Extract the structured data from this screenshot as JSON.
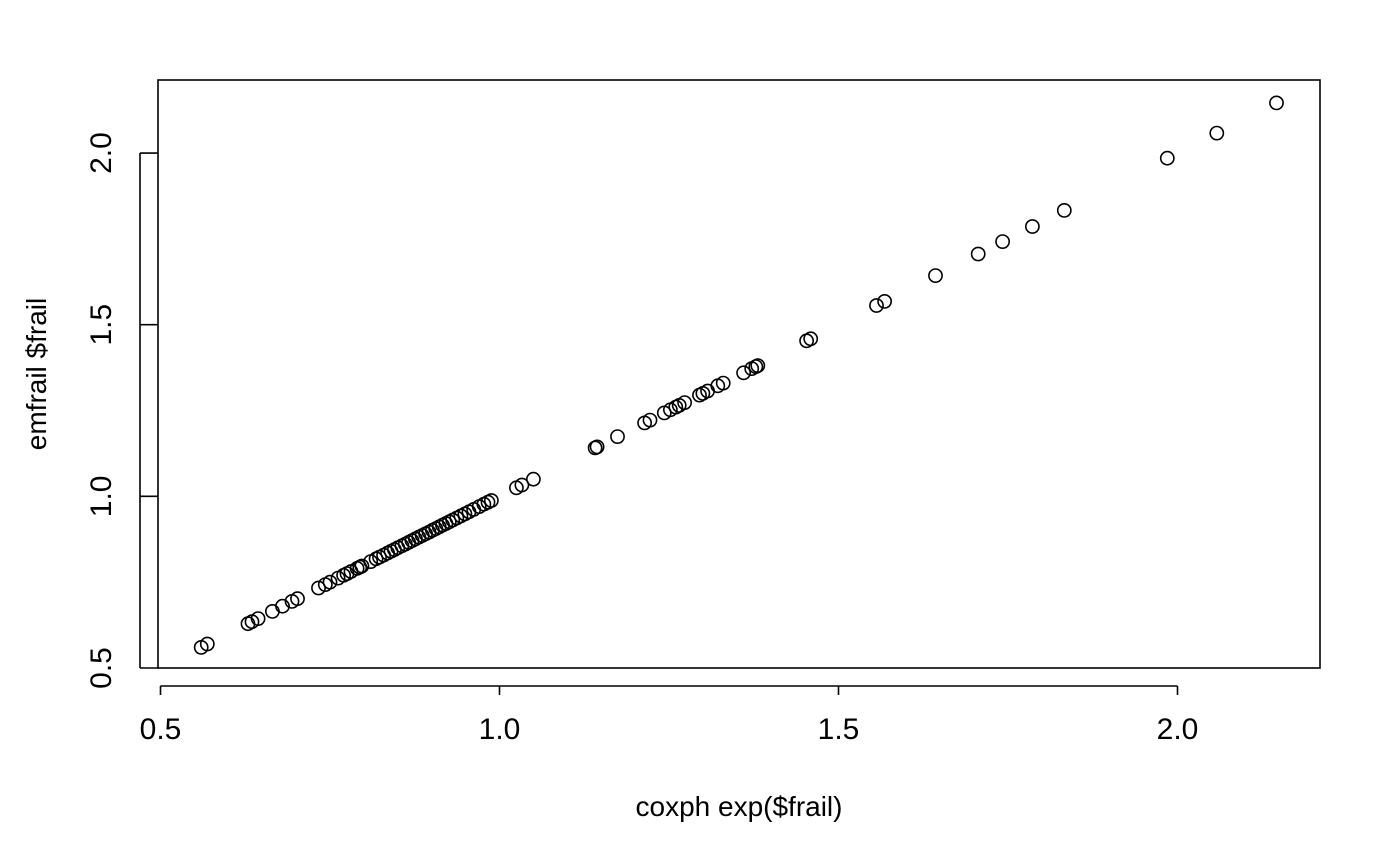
{
  "chart_data": {
    "type": "scatter",
    "title": "",
    "xlabel": "coxph exp($frail)",
    "ylabel": "emfrail $frail",
    "xlim": [
      0.5,
      2.22
    ],
    "ylim": [
      0.5,
      2.21
    ],
    "xticks": [
      0.5,
      1.0,
      1.5,
      2.0
    ],
    "yticks": [
      0.5,
      1.0,
      1.5,
      2.0
    ],
    "xtick_labels": [
      "0.5",
      "1.0",
      "1.5",
      "2.0"
    ],
    "ytick_labels": [
      "0.5",
      "1.0",
      "1.5",
      "2.0"
    ],
    "grid": false,
    "legend": "none",
    "marker": "open-circle",
    "series": [
      {
        "points": [
          [
            0.56,
            0.56
          ],
          [
            0.569,
            0.57
          ],
          [
            0.629,
            0.629
          ],
          [
            0.635,
            0.635
          ],
          [
            0.644,
            0.644
          ],
          [
            0.665,
            0.665
          ],
          [
            0.68,
            0.68
          ],
          [
            0.694,
            0.694
          ],
          [
            0.702,
            0.702
          ],
          [
            0.733,
            0.733
          ],
          [
            0.743,
            0.743
          ],
          [
            0.75,
            0.75
          ],
          [
            0.762,
            0.762
          ],
          [
            0.77,
            0.77
          ],
          [
            0.775,
            0.775
          ],
          [
            0.781,
            0.781
          ],
          [
            0.79,
            0.79
          ],
          [
            0.794,
            0.794
          ],
          [
            0.797,
            0.797
          ],
          [
            0.81,
            0.81
          ],
          [
            0.818,
            0.818
          ],
          [
            0.823,
            0.823
          ],
          [
            0.829,
            0.829
          ],
          [
            0.835,
            0.835
          ],
          [
            0.84,
            0.84
          ],
          [
            0.845,
            0.845
          ],
          [
            0.85,
            0.85
          ],
          [
            0.856,
            0.856
          ],
          [
            0.861,
            0.861
          ],
          [
            0.866,
            0.866
          ],
          [
            0.871,
            0.871
          ],
          [
            0.876,
            0.876
          ],
          [
            0.881,
            0.881
          ],
          [
            0.886,
            0.886
          ],
          [
            0.891,
            0.891
          ],
          [
            0.896,
            0.896
          ],
          [
            0.901,
            0.901
          ],
          [
            0.906,
            0.906
          ],
          [
            0.911,
            0.911
          ],
          [
            0.916,
            0.916
          ],
          [
            0.921,
            0.921
          ],
          [
            0.926,
            0.926
          ],
          [
            0.931,
            0.931
          ],
          [
            0.937,
            0.937
          ],
          [
            0.943,
            0.943
          ],
          [
            0.949,
            0.949
          ],
          [
            0.955,
            0.955
          ],
          [
            0.962,
            0.962
          ],
          [
            0.97,
            0.97
          ],
          [
            0.977,
            0.977
          ],
          [
            0.983,
            0.983
          ],
          [
            0.988,
            0.988
          ],
          [
            1.025,
            1.025
          ],
          [
            1.033,
            1.033
          ],
          [
            1.05,
            1.05
          ],
          [
            1.141,
            1.141
          ],
          [
            1.144,
            1.144
          ],
          [
            1.174,
            1.174
          ],
          [
            1.214,
            1.214
          ],
          [
            1.222,
            1.222
          ],
          [
            1.243,
            1.243
          ],
          [
            1.252,
            1.252
          ],
          [
            1.26,
            1.26
          ],
          [
            1.265,
            1.265
          ],
          [
            1.273,
            1.273
          ],
          [
            1.295,
            1.295
          ],
          [
            1.3,
            1.3
          ],
          [
            1.307,
            1.307
          ],
          [
            1.322,
            1.322
          ],
          [
            1.33,
            1.33
          ],
          [
            1.36,
            1.36
          ],
          [
            1.372,
            1.372
          ],
          [
            1.378,
            1.378
          ],
          [
            1.381,
            1.381
          ],
          [
            1.453,
            1.453
          ],
          [
            1.459,
            1.459
          ],
          [
            1.556,
            1.556
          ],
          [
            1.568,
            1.568
          ],
          [
            1.643,
            1.643
          ],
          [
            1.706,
            1.706
          ],
          [
            1.742,
            1.742
          ],
          [
            1.786,
            1.786
          ],
          [
            1.833,
            1.833
          ],
          [
            1.985,
            1.985
          ],
          [
            2.058,
            2.058
          ],
          [
            2.146,
            2.146
          ]
        ]
      }
    ]
  }
}
